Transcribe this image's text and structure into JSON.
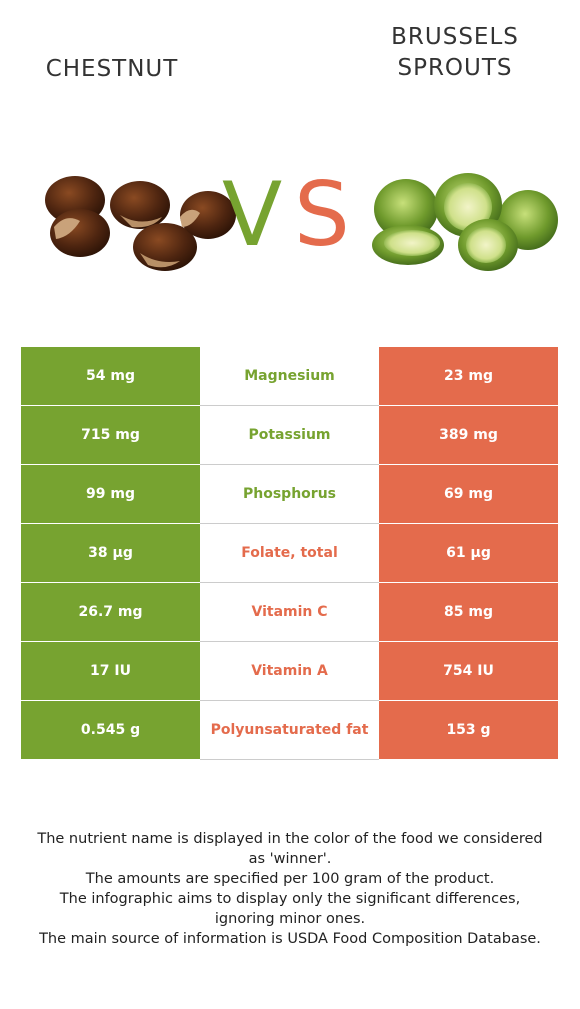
{
  "left_food": {
    "name": "CHESTNUT",
    "color": "#77a330"
  },
  "right_food": {
    "name": "BRUSSELS\nSPROUTS",
    "color": "#e46b4c"
  },
  "vs": {
    "v": "V",
    "s": "S"
  },
  "rows": [
    {
      "left": "54 mg",
      "nutrient": "Magnesium",
      "right": "23 mg",
      "winner": "left"
    },
    {
      "left": "715 mg",
      "nutrient": "Potassium",
      "right": "389 mg",
      "winner": "left"
    },
    {
      "left": "99 mg",
      "nutrient": "Phosphorus",
      "right": "69 mg",
      "winner": "left"
    },
    {
      "left": "38 µg",
      "nutrient": "Folate, total",
      "right": "61 µg",
      "winner": "right"
    },
    {
      "left": "26.7 mg",
      "nutrient": "Vitamin C",
      "right": "85 mg",
      "winner": "right"
    },
    {
      "left": "17 IU",
      "nutrient": "Vitamin A",
      "right": "754 IU",
      "winner": "right"
    },
    {
      "left": "0.545 g",
      "nutrient": "Polyunsaturated fat",
      "right": "153 g",
      "winner": "right"
    }
  ],
  "footnote": [
    "The nutrient name is displayed in the color of the food we considered as 'winner'.",
    "The amounts are specified per 100 gram of the product.",
    "The infographic aims to display only the significant differences, ignoring minor ones.",
    "The main source of information is USDA Food Composition Database."
  ]
}
